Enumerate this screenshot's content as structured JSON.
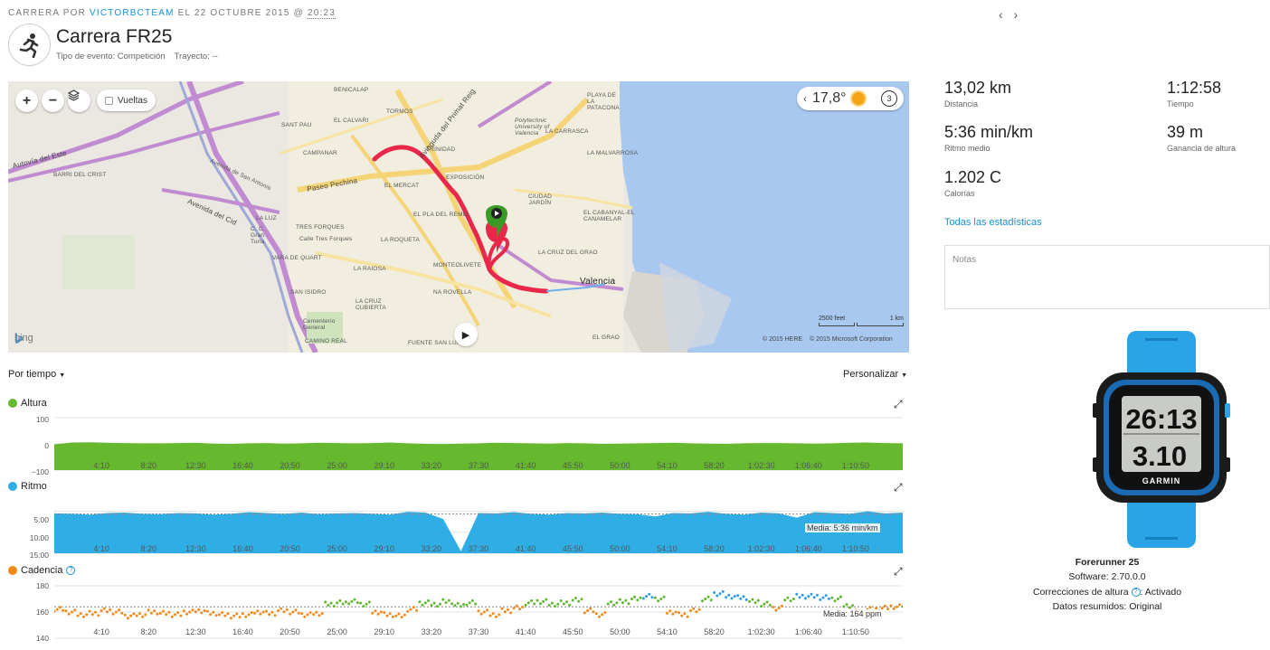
{
  "header": {
    "prefix": "CARRERA POR",
    "user": "VICTORBCTEAM",
    "date": "EL 22 OCTUBRE 2015 @",
    "time": "20:23",
    "prev": "‹",
    "next": "›"
  },
  "activity": {
    "title": "Carrera FR25",
    "event_type": "Tipo de evento: Competición",
    "course": "Trayecto: --",
    "icon": "runner-icon"
  },
  "map": {
    "zoom_in": "+",
    "zoom_out": "−",
    "laps_label": "Vueltas",
    "temperature": "17,8°",
    "weather_count": "3",
    "weather_prev": "‹",
    "bing": "bing",
    "credit_here": "© 2015 HERE",
    "credit_ms": "© 2015 Microsoft Corporation",
    "scale_feet": "2500 feet",
    "scale_km": "1 km",
    "labels": {
      "benicalap": "BENICALAP",
      "elcalvari": "EL CALVARI",
      "tormos": "TORMOS",
      "santpau": "SANT PAU",
      "campanar": "CAMPANAR",
      "trinidad": "TRINIDAD",
      "exposicion": "EXPOSICIÓN",
      "elmercat": "EL MERCAT",
      "plaremei": "EL PLA DEL REMEI",
      "ciudadjardin": "CIUDAD JARDÍN",
      "cabanyal": "EL CABANYAL-EL CANAMELAR",
      "crugrao": "LA CRUZ DEL GRAO",
      "tresforques": "TRES FORQUES",
      "callestresforques": "Calle Tres Forques",
      "laroqueta": "LA ROQUETA",
      "varaquart": "VARA DE QUART",
      "raiosa": "LA RAIOSA",
      "monteolivete": "MONTEOLIVETE",
      "narovella": "NA ROVELLA",
      "sanisidro": "SAN ISIDRO",
      "lacruz": "LA CRUZ CUBIERTA",
      "cementerio": "Cementerio General",
      "camireal": "CAMINO REAL",
      "fuente": "FUENTE SAN LUIS",
      "elgrao": "EL GRAO",
      "malvarrosa": "LA MALVARROSA",
      "carrasca": "LA CARRASCA",
      "patacona": "PLAYA DE LA PATACONA",
      "barricrist": "BARRI DEL CRIST",
      "laluz": "LA LUZ",
      "ccgran": "C. C. Gran Turia",
      "polytechnic": "Polytechnic University of Valencia",
      "valencia": "Valencia",
      "autovia": "Autovía del Este",
      "pasepechina": "Paseo Pechina",
      "avprimat": "Avinguda del Primat Reig",
      "avcid": "Avenida del Cid",
      "avsanant": "Avenida de San Antonio"
    }
  },
  "stats": [
    {
      "value": "13,02 km",
      "label": "Distancia"
    },
    {
      "value": "1:12:58",
      "label": "Tiempo"
    },
    {
      "value": "5:36 min/km",
      "label": "Ritmo medio"
    },
    {
      "value": "39 m",
      "label": "Ganancia de altura"
    },
    {
      "value": "1.202 C",
      "label": "Calorías"
    }
  ],
  "all_stats_link": "Todas las estadísticas",
  "notes_placeholder": "Notas",
  "device": {
    "name": "Forerunner 25",
    "software": "Software: 2.70.0.0",
    "elev_corr_label": "Correcciones de altura",
    "elev_corr_value": ": Activado",
    "summary": "Datos resumidos: Original",
    "screen_top": "26:13",
    "screen_bottom": "3.10",
    "brand": "GARMIN"
  },
  "chart_controls": {
    "by": "Por tiempo",
    "customize": "Personalizar"
  },
  "colors": {
    "altura": "#66b82e",
    "ritmo": "#2faee6",
    "cadencia": "#f28a1a",
    "cad_green": "#61b72f",
    "cad_blue": "#2e9ae0",
    "cad_red": "#d4145a",
    "route": "#e8274b",
    "link": "#1a8fd0"
  },
  "chart_data": [
    {
      "type": "area",
      "title": "Altura",
      "x_ticks": [
        "4:10",
        "8:20",
        "12:30",
        "16:40",
        "20:50",
        "25:00",
        "29:10",
        "33:20",
        "37:30",
        "41:40",
        "45:50",
        "50:00",
        "54:10",
        "58:20",
        "1:02:30",
        "1:06:40",
        "1:10:50"
      ],
      "y_ticks": [
        "100",
        "0",
        "−100"
      ],
      "ylim": [
        -100,
        100
      ],
      "series": [
        {
          "values": [
            -2,
            5,
            6,
            4,
            3,
            2,
            2,
            3,
            4,
            1,
            0,
            2,
            3,
            1,
            2,
            4,
            3,
            2,
            3,
            5,
            2,
            0,
            -1,
            1,
            2,
            4,
            3,
            2,
            1,
            3,
            2,
            0,
            1,
            2,
            3,
            4,
            2,
            1,
            0,
            2,
            3,
            3,
            2,
            1,
            2,
            4,
            5,
            3,
            2
          ]
        }
      ]
    },
    {
      "type": "area",
      "title": "Ritmo",
      "x_ticks": [
        "4:10",
        "8:20",
        "12:30",
        "16:40",
        "20:50",
        "25:00",
        "29:10",
        "33:20",
        "37:30",
        "41:40",
        "45:50",
        "50:00",
        "54:10",
        "58:20",
        "1:02:30",
        "1:06:40",
        "1:10:50"
      ],
      "y_ticks": [
        "5:00",
        "10:00",
        "15:00"
      ],
      "ylim_minutes": [
        2.5,
        15
      ],
      "average_label": "Media: 5:36 min/km",
      "average_minutes": 5.6,
      "series": [
        {
          "values_minutes": [
            5.5,
            5.6,
            5.8,
            5.4,
            5.3,
            5.6,
            5.7,
            5.4,
            5.5,
            5.8,
            5.6,
            5.2,
            5.4,
            5.6,
            5.3,
            5.7,
            5.5,
            5.4,
            5.6,
            5.8,
            5.1,
            5.3,
            6.8,
            14.5,
            5.4,
            5.5,
            5.2,
            5.6,
            5.8,
            5.4,
            5.5,
            5.3,
            5.6,
            5.7,
            6.2,
            5.4,
            5.5,
            5.1,
            5.6,
            5.8,
            5.3,
            5.5,
            6.5,
            5.2,
            5.4,
            5.6,
            5.0,
            5.5,
            5.3
          ]
        }
      ]
    },
    {
      "type": "scatter",
      "title": "Cadencia",
      "x_ticks": [
        "4:10",
        "8:20",
        "12:30",
        "16:40",
        "20:50",
        "25:00",
        "29:10",
        "33:20",
        "37:30",
        "41:40",
        "45:50",
        "50:00",
        "54:10",
        "58:20",
        "1:02:30",
        "1:06:40",
        "1:10:50"
      ],
      "y_ticks": [
        "180",
        "160",
        "140"
      ],
      "ylim": [
        140,
        180
      ],
      "average_label": "Media: 164 ppm",
      "average": 164,
      "series": [
        {
          "name": "",
          "values": [
            162,
            160,
            158,
            159,
            161,
            160,
            157,
            158,
            160,
            159,
            158,
            160,
            161,
            159,
            158,
            157,
            158,
            160,
            159,
            161,
            160,
            158,
            159,
            166,
            167,
            168,
            166,
            160,
            158,
            157,
            162,
            167,
            166,
            168,
            165,
            167,
            160,
            158,
            161,
            163,
            167,
            168,
            166,
            167,
            169,
            161,
            158,
            167,
            168,
            170,
            172,
            170,
            160,
            158,
            161,
            170,
            174,
            172,
            171,
            168,
            166,
            163,
            170,
            172,
            172,
            171,
            170,
            165,
            160,
            162,
            163,
            164,
            165
          ]
        }
      ]
    }
  ]
}
